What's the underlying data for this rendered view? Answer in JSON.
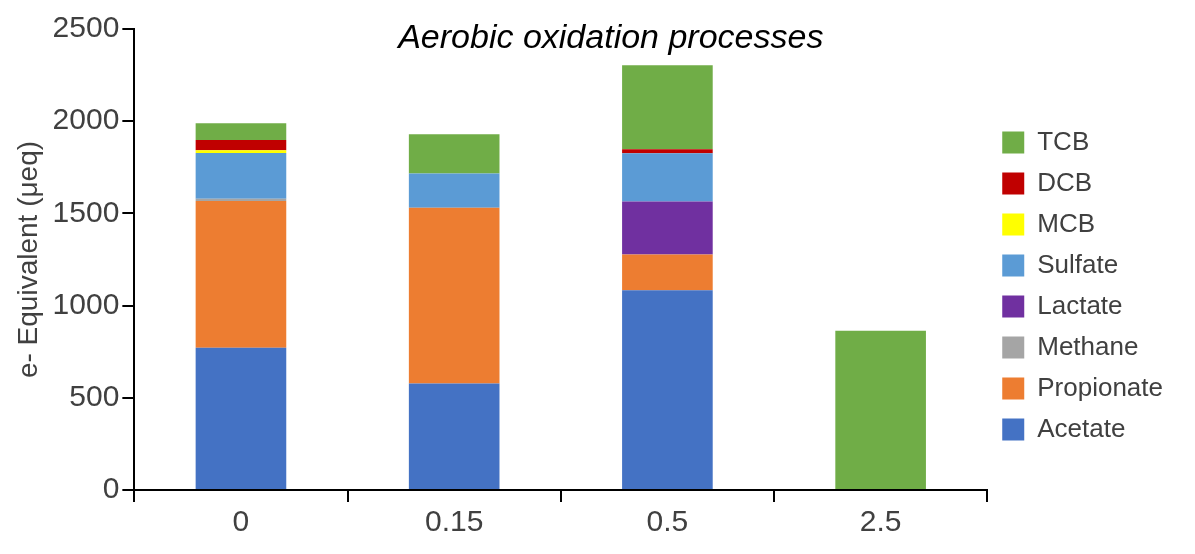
{
  "chart_data": {
    "type": "bar",
    "title": "Aerobic oxidation processes",
    "ylabel": "e- Equivalent (μeq)",
    "categories": [
      "0",
      "0.15",
      "0.5",
      "2.5"
    ],
    "stacked": true,
    "ylim": [
      0,
      2500
    ],
    "yticks": [
      0,
      500,
      1000,
      1500,
      2000,
      2500
    ],
    "grid": false,
    "legend": "right",
    "series": [
      {
        "name": "Acetate",
        "color": "#4472c4",
        "values": [
          772,
          578,
          1083,
          0
        ]
      },
      {
        "name": "Propionate",
        "color": "#ed7d31",
        "values": [
          795,
          953,
          194,
          0
        ]
      },
      {
        "name": "Methane",
        "color": "#a5a5a5",
        "values": [
          13,
          0,
          0,
          0
        ]
      },
      {
        "name": "Lactate",
        "color": "#7030a0",
        "values": [
          0,
          0,
          287,
          0
        ]
      },
      {
        "name": "Sulfate",
        "color": "#5b9bd5",
        "values": [
          248,
          185,
          262,
          0
        ]
      },
      {
        "name": "MCB",
        "color": "#ffff00",
        "values": [
          14,
          0,
          0,
          0
        ]
      },
      {
        "name": "DCB",
        "color": "#c00000",
        "values": [
          56,
          0,
          22,
          0
        ]
      },
      {
        "name": "TCB",
        "color": "#70ad47",
        "values": [
          91,
          213,
          456,
          864
        ]
      }
    ]
  }
}
